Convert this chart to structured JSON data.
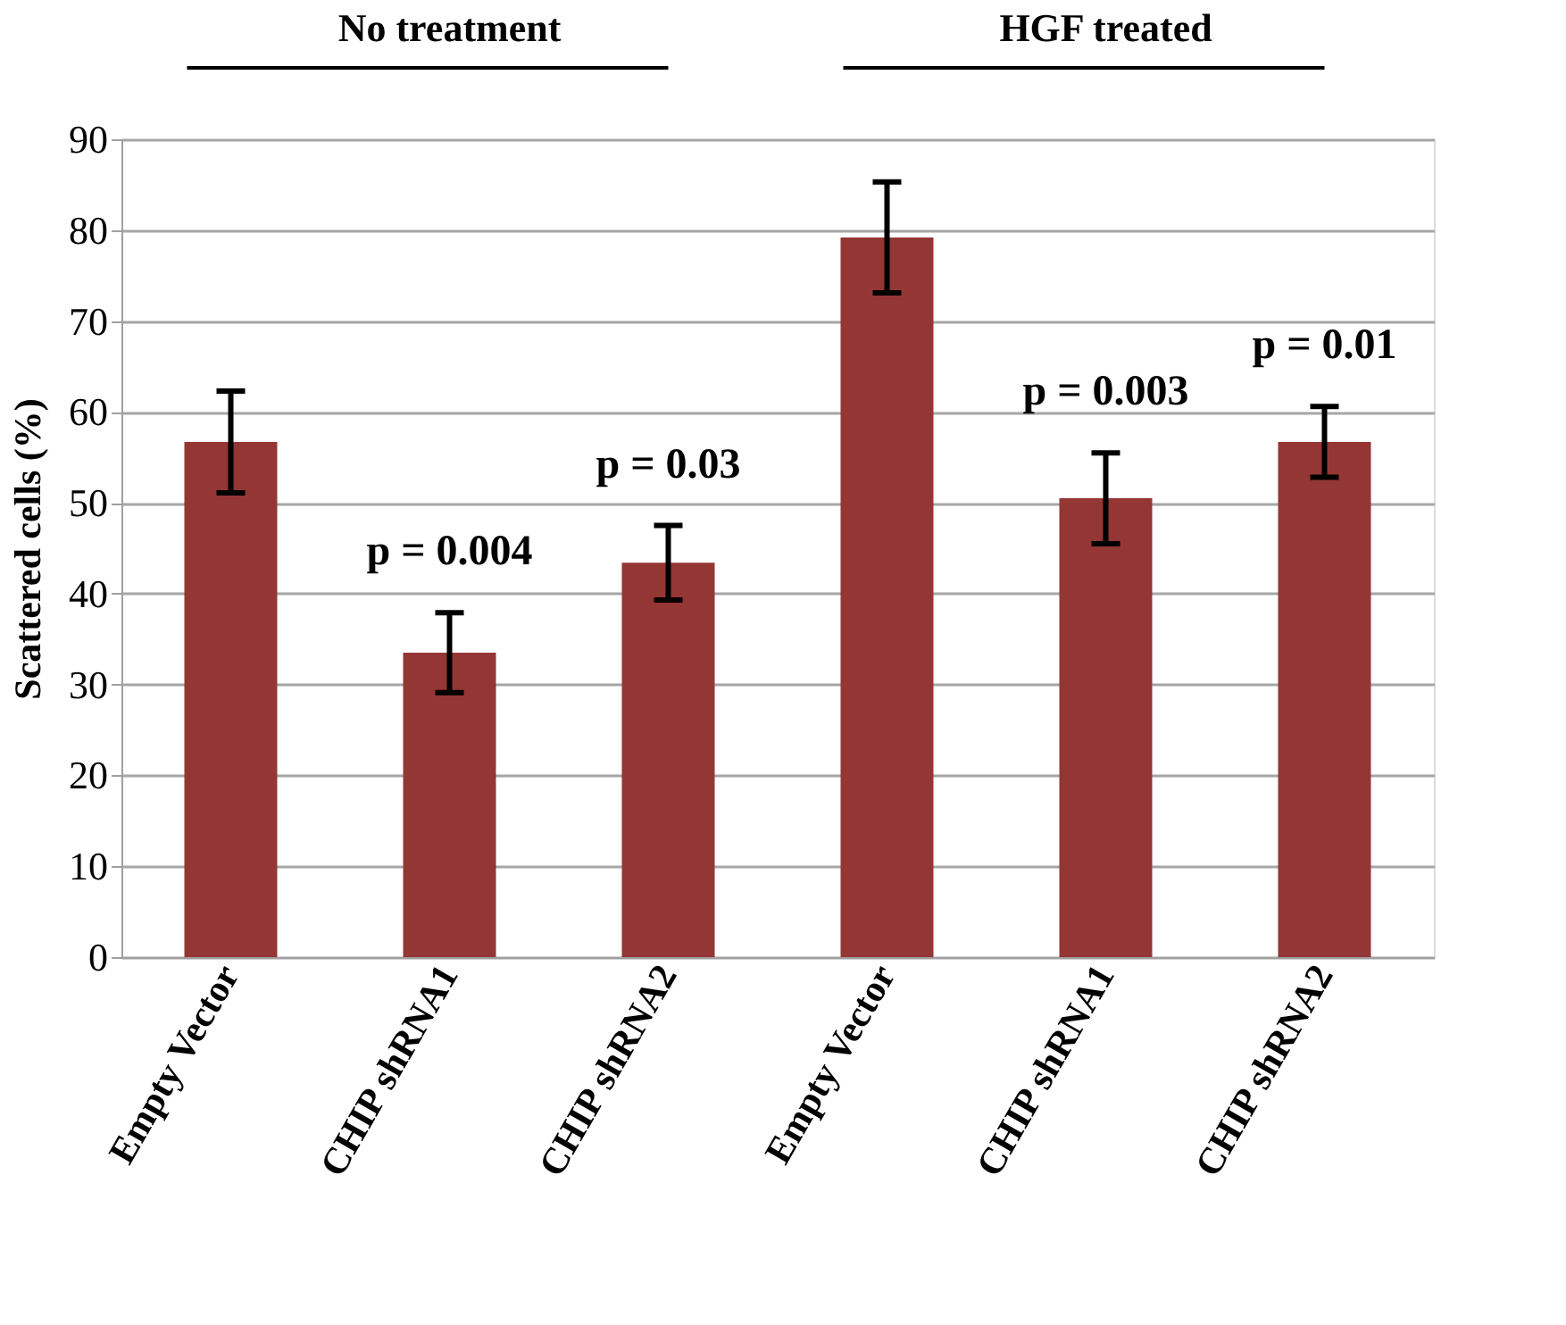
{
  "chart_data": {
    "type": "bar",
    "ylabel": "Scattered cells (%)",
    "categories": [
      "Empty Vector",
      "CHIP shRNA1",
      "CHIP shRNA2",
      "Empty Vector",
      "CHIP shRNA1",
      "CHIP shRNA2"
    ],
    "values": [
      56.7,
      33.5,
      43.4,
      79.2,
      50.5,
      56.7
    ],
    "errors": [
      5.6,
      4.4,
      4.1,
      6.1,
      5.0,
      3.9
    ],
    "color": "#943634",
    "ylim": [
      0,
      90
    ],
    "yticks": [
      0,
      10,
      20,
      30,
      40,
      50,
      60,
      70,
      80,
      90
    ],
    "grid": "y",
    "annotations": [
      "No treatment",
      "HGF treated",
      "p  = 0.004",
      "p = 0.03",
      "p = 0.003",
      "p = 0.01"
    ]
  }
}
